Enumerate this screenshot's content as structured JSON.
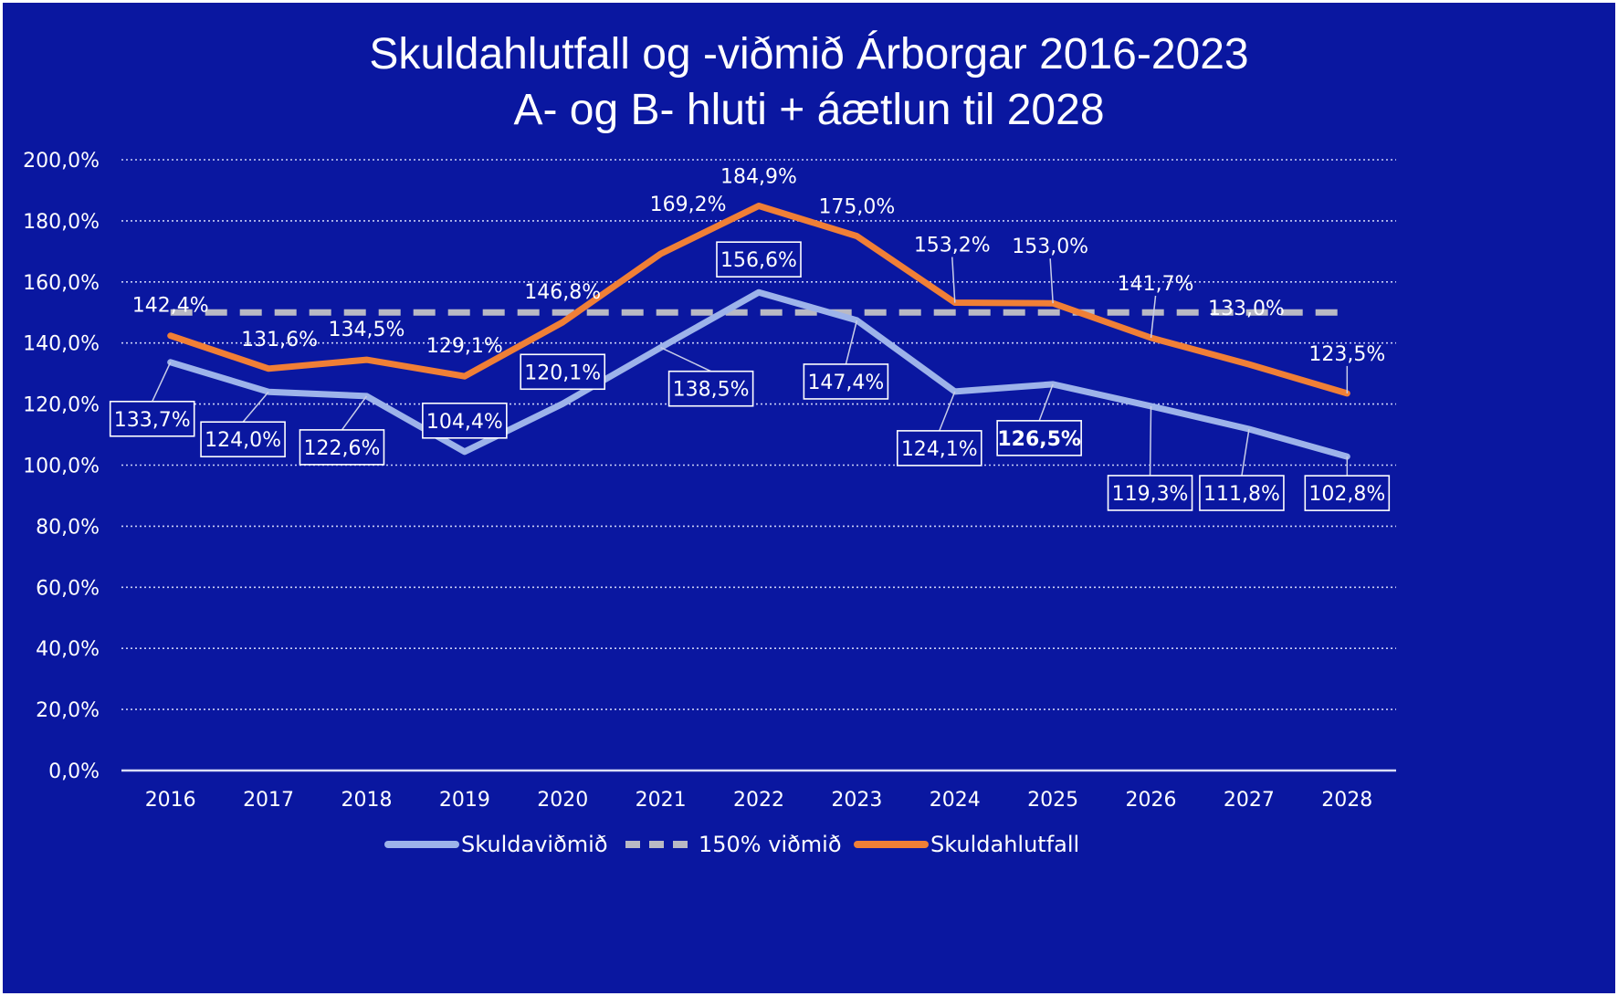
{
  "colors": {
    "background": "#0a17a0",
    "grid": "#c9cff5",
    "axis": "#d9def8",
    "text": "#ffffff",
    "skuldavidmid": "#9db3ea",
    "threshold": "#b9b9c4",
    "skuldahlutfall": "#f07f36"
  },
  "chart_data": {
    "type": "line",
    "title": [
      "Skuldahlutfall og -viðmið Árborgar 2016-2023",
      "A- og B- hluti + áætlun til 2028"
    ],
    "categories": [
      "2016",
      "2017",
      "2018",
      "2019",
      "2020",
      "2021",
      "2022",
      "2023",
      "2024",
      "2025",
      "2026",
      "2027",
      "2028"
    ],
    "ylim": [
      0,
      200
    ],
    "yticks": [
      "0,0%",
      "20,0%",
      "40,0%",
      "60,0%",
      "80,0%",
      "100,0%",
      "120,0%",
      "140,0%",
      "160,0%",
      "180,0%",
      "200,0%"
    ],
    "grid": true,
    "legend_position": "bottom",
    "series": [
      {
        "name": "Skuldaviðmið",
        "color": "#9db3ea",
        "style": "solid",
        "values": [
          133.7,
          124.0,
          122.6,
          104.4,
          120.1,
          138.5,
          156.6,
          147.4,
          124.1,
          126.5,
          119.3,
          111.8,
          102.8
        ],
        "labels": [
          "133,7%",
          "124,0%",
          "122,6%",
          "104,4%",
          "120,1%",
          "138,5%",
          "156,6%",
          "147,4%",
          "124,1%",
          "126,5%",
          "119,3%",
          "111,8%",
          "102,8%"
        ],
        "label_boxed": true,
        "label_bold_index": 9
      },
      {
        "name": "150% viðmið",
        "color": "#b9b9c4",
        "style": "dashed",
        "values": [
          150,
          150,
          150,
          150,
          150,
          150,
          150,
          150,
          150,
          150,
          150,
          150,
          150
        ]
      },
      {
        "name": "Skuldahlutfall",
        "color": "#f07f36",
        "style": "solid",
        "values": [
          142.4,
          131.6,
          134.5,
          129.1,
          146.8,
          169.2,
          184.9,
          175.0,
          153.2,
          153.0,
          141.7,
          133.0,
          123.5
        ],
        "labels": [
          "142,4%",
          "131,6%",
          "134,5%",
          "129,1%",
          "146,8%",
          "169,2%",
          "184,9%",
          "175,0%",
          "153,2%",
          "153,0%",
          "141,7%",
          "133,0%",
          "123,5%"
        ],
        "label_boxed": false
      }
    ]
  }
}
